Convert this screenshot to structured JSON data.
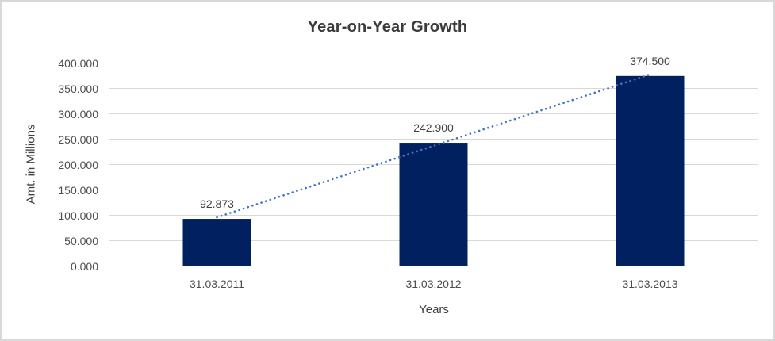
{
  "chart_data": {
    "type": "bar",
    "title": "Year-on-Year Growth",
    "xlabel": "Years",
    "ylabel": "Amt. in Millions",
    "categories": [
      "31.03.2011",
      "31.03.2012",
      "31.03.2013"
    ],
    "values": [
      92.873,
      242.9,
      374.5
    ],
    "data_labels": [
      "92.873",
      "242.900",
      "374.500"
    ],
    "ytick_labels": [
      "0.000",
      "50.000",
      "100.000",
      "150.000",
      "200.000",
      "250.000",
      "300.000",
      "350.000",
      "400.000"
    ],
    "ytick_step": 50,
    "ylim": [
      0,
      400
    ],
    "grid": true,
    "legend": false,
    "trendline": {
      "type": "linear",
      "style": "dotted",
      "color": "#4472C4"
    },
    "colors": {
      "bar": "#002060",
      "gridline": "#d9d9d9",
      "axis_line": "#bfbfbf",
      "tick_text": "#4d4d4d",
      "title_text": "#3b3b3b"
    }
  }
}
